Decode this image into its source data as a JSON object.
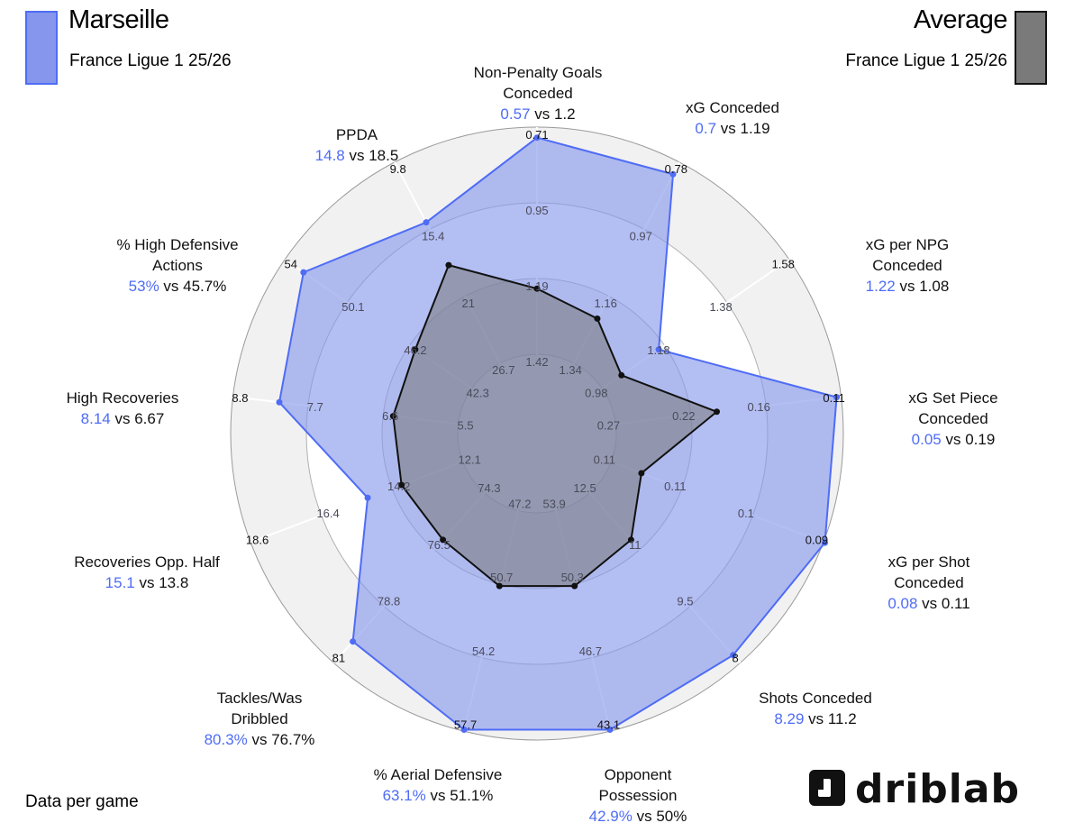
{
  "header": {
    "team": "Marseille",
    "team_league": "France Ligue 1 25/26",
    "compare": "Average",
    "compare_league": "France Ligue 1 25/26"
  },
  "colors": {
    "team": "#4f6cf5",
    "team_fill": "#8596ec",
    "compare": "#555555",
    "compare_fill": "#7a7a7a"
  },
  "footnote": "Data per game",
  "brand": "driblab",
  "chart_data": {
    "type": "radar",
    "vs_word": "vs",
    "axes": [
      {
        "label": [
          "Non-Penalty Goals",
          "Conceded"
        ],
        "team": "0.57",
        "avg": "1.2",
        "team_val": 0.57,
        "avg_val": 1.2,
        "ticks": [
          "1.42",
          "1.19",
          "0.95",
          "0.71"
        ],
        "team_r": 0.98,
        "avg_r": 0.48
      },
      {
        "label": [
          "xG Conceded"
        ],
        "team": "0.7",
        "avg": "1.19",
        "team_val": 0.7,
        "avg_val": 1.19,
        "ticks": [
          "1.34",
          "1.16",
          "0.97",
          "0.78"
        ],
        "team_r": 0.97,
        "avg_r": 0.43
      },
      {
        "label": [
          "xG per NPG",
          "Conceded"
        ],
        "team": "1.22",
        "avg": "1.08",
        "team_val": 1.22,
        "avg_val": 1.08,
        "ticks": [
          "0.98",
          "1.18",
          "1.38",
          "1.58"
        ],
        "team_r": 0.49,
        "avg_r": 0.34
      },
      {
        "label": [
          "xG Set Piece",
          "Conceded"
        ],
        "team": "0.05",
        "avg": "0.19",
        "team_val": 0.05,
        "avg_val": 0.19,
        "ticks": [
          "0.27",
          "0.22",
          "0.16",
          "0.11"
        ],
        "team_r": 1.0,
        "avg_r": 0.6
      },
      {
        "label": [
          "xG per Shot",
          "Conceded"
        ],
        "team": "0.08",
        "avg": "0.11",
        "team_val": 0.08,
        "avg_val": 0.11,
        "ticks": [
          "0.11",
          "0.11",
          "0.1",
          "0.09"
        ],
        "team_r": 1.02,
        "avg_r": 0.37
      },
      {
        "label": [
          "Shots Conceded"
        ],
        "team": "8.29",
        "avg": "11.2",
        "team_val": 8.29,
        "avg_val": 11.2,
        "ticks": [
          "12.5",
          "11",
          "9.5",
          "8"
        ],
        "team_r": 0.98,
        "avg_r": 0.47
      },
      {
        "label": [
          "Opponent",
          "Possession"
        ],
        "team": "42.9%",
        "avg": "50%",
        "team_val": 42.9,
        "avg_val": 50,
        "ticks": [
          "53.9",
          "50.3",
          "46.7",
          "43.1"
        ],
        "team_r": 1.01,
        "avg_r": 0.52
      },
      {
        "label": [
          "% Aerial Defensive"
        ],
        "team": "63.1%",
        "avg": "51.1%",
        "team_val": 63.1,
        "avg_val": 51.1,
        "ticks": [
          "47.2",
          "50.7",
          "54.2",
          "57.7"
        ],
        "team_r": 1.01,
        "avg_r": 0.52
      },
      {
        "label": [
          "Tackles/Was",
          "Dribbled"
        ],
        "team": "80.3%",
        "avg": "76.7%",
        "team_val": 80.3,
        "avg_val": 76.7,
        "ticks": [
          "74.3",
          "76.5",
          "78.8",
          "81"
        ],
        "team_r": 0.92,
        "avg_r": 0.47
      },
      {
        "label": [
          "Recoveries Opp. Half"
        ],
        "team": "15.1",
        "avg": "13.8",
        "team_val": 15.1,
        "avg_val": 13.8,
        "ticks": [
          "12.1",
          "14.2",
          "16.4",
          "18.6"
        ],
        "team_r": 0.6,
        "avg_r": 0.48
      },
      {
        "label": [
          "High Recoveries"
        ],
        "team": "8.14",
        "avg": "6.67",
        "team_val": 8.14,
        "avg_val": 6.67,
        "ticks": [
          "5.5",
          "6.6",
          "7.7",
          "8.8"
        ],
        "team_r": 0.86,
        "avg_r": 0.48
      },
      {
        "label": [
          "% High Defensive",
          "Actions"
        ],
        "team": "53%",
        "avg": "45.7%",
        "team_val": 53,
        "avg_val": 45.7,
        "ticks": [
          "42.3",
          "46.2",
          "50.1",
          "54"
        ],
        "team_r": 0.94,
        "avg_r": 0.49
      },
      {
        "label": [
          "PPDA"
        ],
        "team": "14.8",
        "avg": "18.5",
        "team_val": 14.8,
        "avg_val": 18.5,
        "ticks": [
          "26.7",
          "21",
          "15.4",
          "9.8"
        ],
        "team_r": 0.79,
        "avg_r": 0.63
      }
    ]
  }
}
